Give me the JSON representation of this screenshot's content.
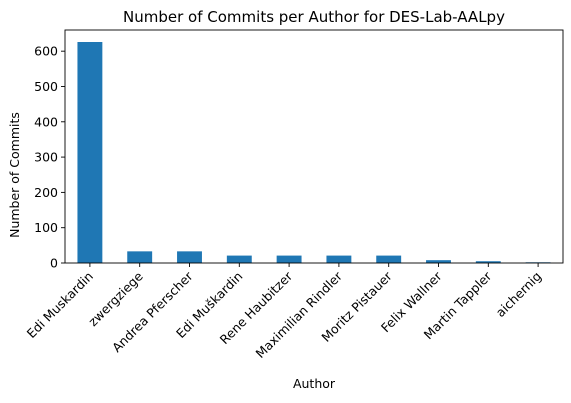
{
  "chart_data": {
    "type": "bar",
    "title": "Number of Commits per Author for DES-Lab-AALpy",
    "xlabel": "Author",
    "ylabel": "Number of Commits",
    "categories": [
      "Edi Muskardin",
      "zwergziege",
      "Andrea Pferscher",
      "Edi Muškardin",
      "Rene Haubitzer",
      "Maximilian Rindler",
      "Moritz Pistauer",
      "Felix Wallner",
      "Martin Tappler",
      "aichernig"
    ],
    "values": [
      626,
      33,
      33,
      21,
      21,
      21,
      21,
      8,
      5,
      2
    ],
    "ylim": [
      0,
      660
    ],
    "yticks": [
      0,
      100,
      200,
      300,
      400,
      500,
      600
    ],
    "bar_color": "#1f77b4",
    "grid": false,
    "legend": false
  }
}
